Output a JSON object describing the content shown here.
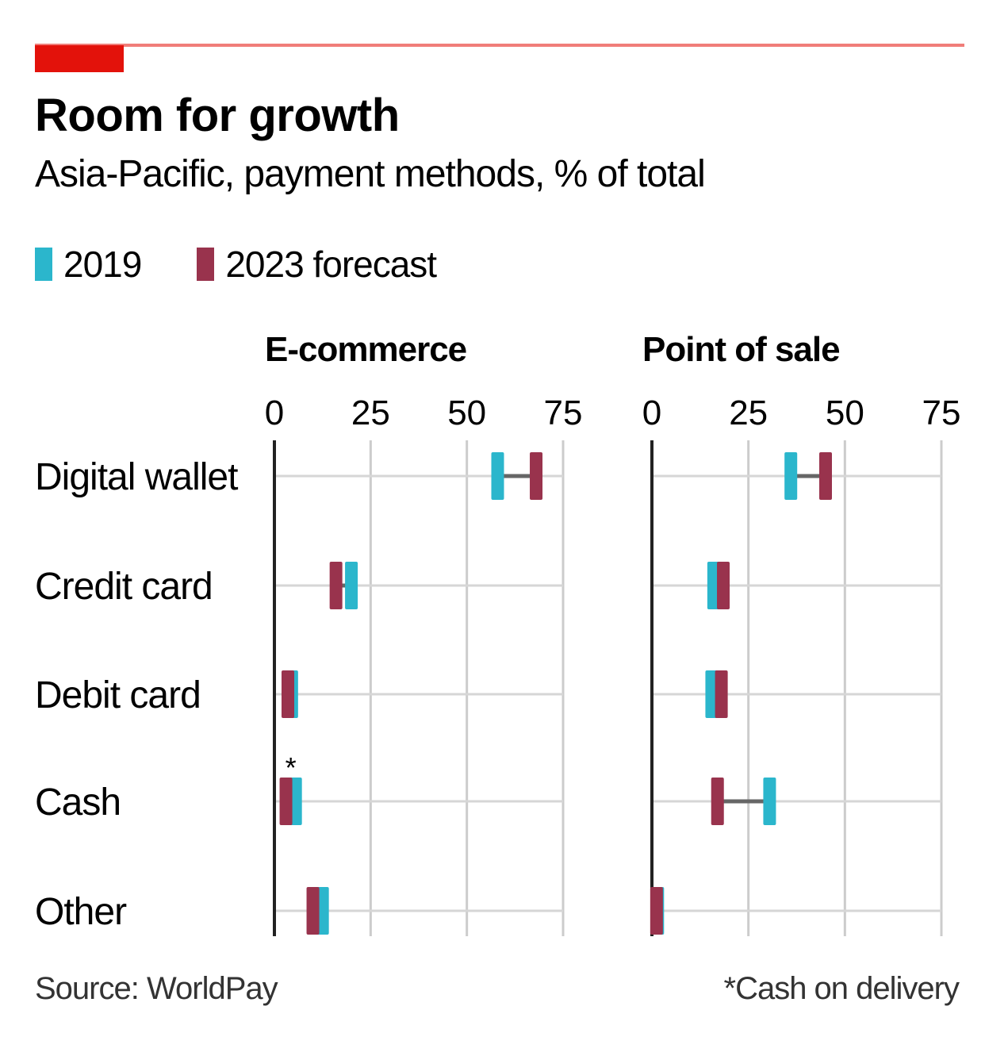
{
  "header": {
    "title": "Room for growth",
    "subtitle": "Asia-Pacific, payment methods, % of total"
  },
  "legend": [
    {
      "label": "2019",
      "color": "#2bb6cc"
    },
    {
      "label": "2023 forecast",
      "color": "#99334d"
    }
  ],
  "footer": {
    "source": "Source: WorldPay",
    "note": "*Cash on delivery"
  },
  "chart_data": [
    {
      "type": "dot-range",
      "title": "E-commerce",
      "xlabel": "",
      "ylabel": "",
      "xlim": [
        0,
        75
      ],
      "xticks": [
        0,
        25,
        50,
        75
      ],
      "grid": true,
      "categories": [
        "Digital wallet",
        "Credit card",
        "Debit card",
        "Cash",
        "Other"
      ],
      "category_annotations": {
        "Cash": "*"
      },
      "series": [
        {
          "name": "2019",
          "color": "#2bb6cc",
          "values": [
            58,
            20,
            4.5,
            5.5,
            12.5
          ]
        },
        {
          "name": "2023 forecast",
          "color": "#99334d",
          "values": [
            68,
            16,
            3.5,
            3,
            10
          ]
        }
      ]
    },
    {
      "type": "dot-range",
      "title": "Point of sale",
      "xlabel": "",
      "ylabel": "",
      "xlim": [
        0,
        75
      ],
      "xticks": [
        0,
        25,
        50,
        75
      ],
      "grid": true,
      "categories": [
        "Digital wallet",
        "Credit card",
        "Debit card",
        "Cash",
        "Other"
      ],
      "series": [
        {
          "name": "2019",
          "color": "#2bb6cc",
          "values": [
            36,
            16,
            15.5,
            30.5,
            1.5
          ]
        },
        {
          "name": "2023 forecast",
          "color": "#99334d",
          "values": [
            45,
            18.5,
            18,
            17,
            1.2
          ]
        }
      ]
    }
  ]
}
